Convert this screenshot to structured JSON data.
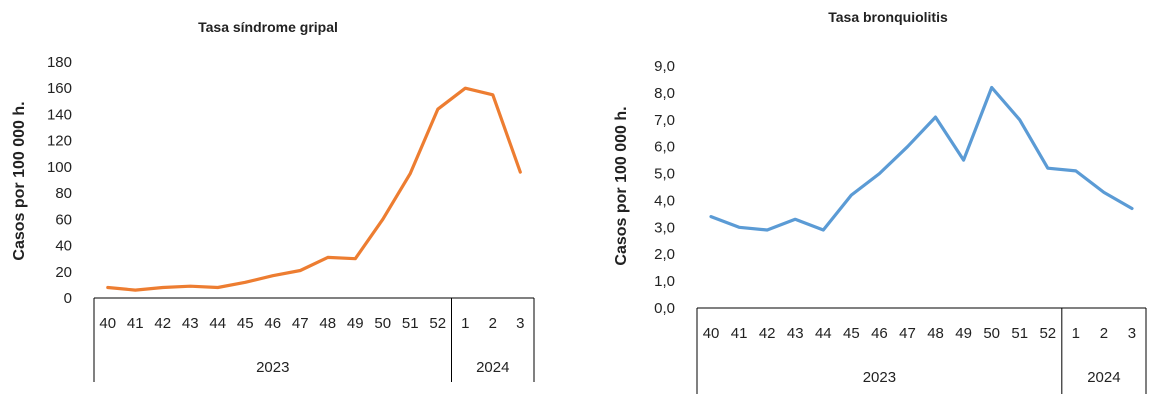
{
  "chart_data": [
    {
      "type": "line",
      "title": "Tasa síndrome gripal",
      "ylabel": "Casos por 100 000 h.",
      "xlabel": "",
      "ylim": [
        0,
        180
      ],
      "yticks": [
        "0",
        "20",
        "40",
        "60",
        "80",
        "100",
        "120",
        "140",
        "160",
        "180"
      ],
      "categories": [
        "40",
        "41",
        "42",
        "43",
        "44",
        "45",
        "46",
        "47",
        "48",
        "49",
        "50",
        "51",
        "52",
        "1",
        "2",
        "3"
      ],
      "groups": [
        {
          "label": "2023",
          "count": 13
        },
        {
          "label": "2024",
          "count": 3
        }
      ],
      "series": [
        {
          "color": "#ED7D31",
          "values": [
            8,
            6,
            8,
            9,
            8,
            12,
            17,
            21,
            31,
            30,
            60,
            95,
            144,
            160,
            155,
            96
          ]
        }
      ],
      "grid": false
    },
    {
      "type": "line",
      "title": "Tasa bronquiolitis",
      "ylabel": "Casos por 100 000 h.",
      "xlabel": "",
      "ylim": [
        0,
        9
      ],
      "yticks": [
        "0,0",
        "1,0",
        "2,0",
        "3,0",
        "4,0",
        "5,0",
        "6,0",
        "7,0",
        "8,0",
        "9,0"
      ],
      "categories": [
        "40",
        "41",
        "42",
        "43",
        "44",
        "45",
        "46",
        "47",
        "48",
        "49",
        "50",
        "51",
        "52",
        "1",
        "2",
        "3"
      ],
      "groups": [
        {
          "label": "2023",
          "count": 13
        },
        {
          "label": "2024",
          "count": 3
        }
      ],
      "series": [
        {
          "color": "#5B9BD5",
          "values": [
            3.4,
            3.0,
            2.9,
            3.3,
            2.9,
            4.2,
            5.0,
            6.0,
            7.1,
            5.5,
            8.2,
            7.0,
            5.2,
            5.1,
            4.3,
            3.7
          ]
        }
      ],
      "grid": false
    }
  ]
}
